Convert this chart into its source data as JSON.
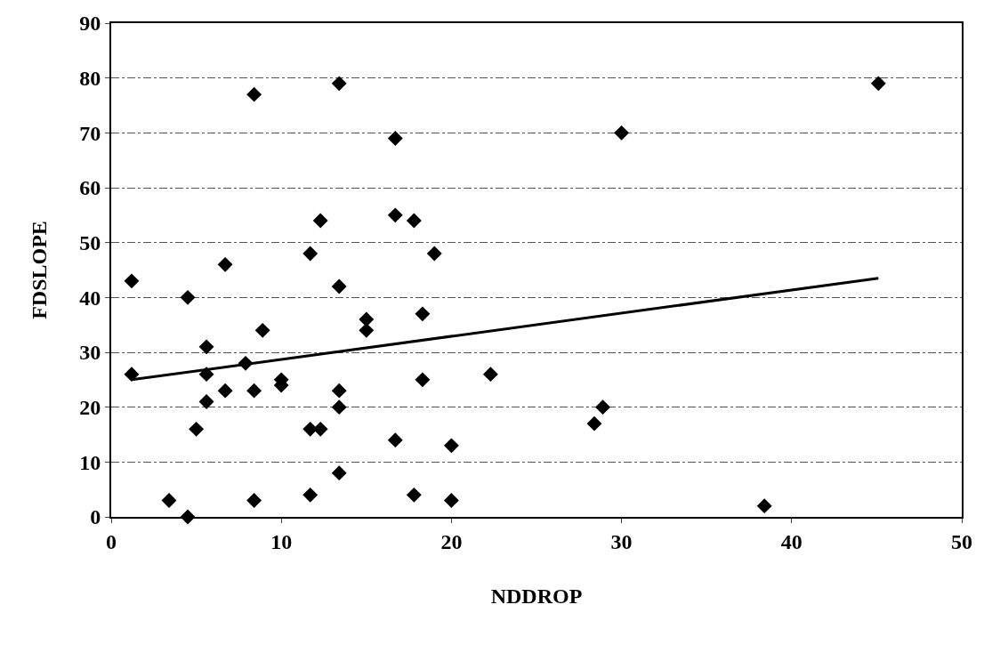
{
  "chart_data": {
    "type": "scatter",
    "xlabel": "NDDROP",
    "ylabel": "FDSLOPE",
    "xlim": [
      0,
      50
    ],
    "xticks": [
      0,
      10,
      20,
      30,
      40,
      50
    ],
    "ylim": [
      0,
      90
    ],
    "yticks": [
      0,
      10,
      20,
      30,
      40,
      50,
      60,
      70,
      80,
      90
    ],
    "grid": "y",
    "series": [
      {
        "color": "#000000",
        "marker": "diamond",
        "x": [
          1.2,
          1.2,
          3.4,
          4.5,
          4.5,
          5,
          5.6,
          5.6,
          5.6,
          6.7,
          6.7,
          7.9,
          8.4,
          8.4,
          8.4,
          8.9,
          10,
          10,
          11.7,
          11.7,
          11.7,
          12.3,
          12.3,
          13.4,
          13.4,
          13.4,
          13.4,
          13.4,
          15,
          15,
          16.7,
          16.7,
          16.7,
          17.8,
          17.8,
          18.3,
          18.3,
          19,
          20,
          20,
          22.3,
          28.4,
          28.9,
          30,
          38.4,
          45.1
        ],
        "values": [
          26,
          43,
          3,
          0,
          40,
          16,
          31,
          26,
          21,
          23,
          46,
          28,
          77,
          23,
          3,
          34,
          25,
          24,
          48,
          16,
          4,
          54,
          16,
          79,
          42,
          23,
          20,
          8,
          36,
          34,
          69,
          55,
          14,
          54,
          4,
          37,
          25,
          48,
          13,
          3,
          26,
          17,
          20,
          70,
          2,
          79
        ]
      },
      {
        "type": "line",
        "color": "#000000",
        "line_style": "solid",
        "marker": "none",
        "x": [
          1.2,
          45.1
        ],
        "values": [
          25,
          43.5
        ]
      }
    ]
  }
}
